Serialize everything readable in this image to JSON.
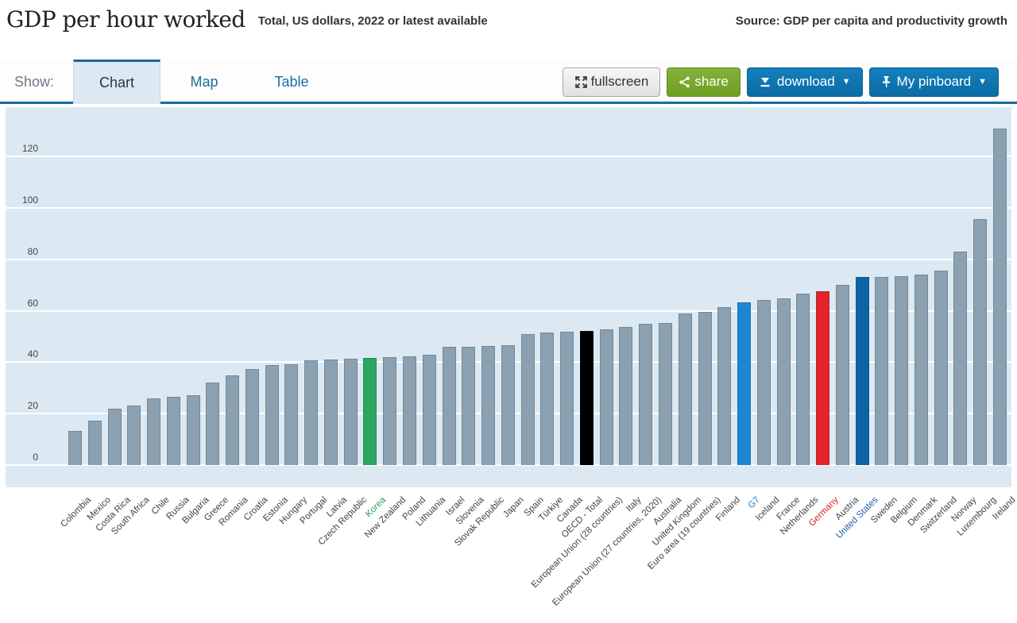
{
  "header": {
    "title": "GDP per hour worked",
    "subtitle": "Total, US dollars, 2022 or latest available",
    "source": "Source: GDP per capita and productivity growth"
  },
  "toolbar": {
    "show_label": "Show:",
    "tabs": [
      {
        "label": "Chart",
        "active": true
      },
      {
        "label": "Map",
        "active": false
      },
      {
        "label": "Table",
        "active": false
      }
    ],
    "buttons": {
      "fullscreen": "fullscreen",
      "share": "share",
      "download": "download",
      "pinboard": "My pinboard"
    },
    "icons": {
      "fullscreen": "expand-arrows-icon",
      "share": "share-nodes-icon",
      "download": "download-arrow-icon",
      "pinboard": "pushpin-icon",
      "caret": "caret-down-icon"
    }
  },
  "colors": {
    "chart_background": "#dce9f2",
    "gridline": "#ffffff",
    "bar_default": "#8ba1b1",
    "accent_blue": "#1a6a9d",
    "button_blue": "#0d6ba3",
    "button_green": "#6e9e23",
    "label_text": "#3f4449"
  },
  "chart_data": {
    "type": "bar",
    "title": "GDP per hour worked",
    "subtitle": "Total, US dollars, 2022 or latest available",
    "xlabel": "",
    "ylabel": "",
    "ylim": [
      0,
      140
    ],
    "yticks": [
      0,
      20,
      40,
      60,
      80,
      100,
      120
    ],
    "grid": true,
    "legend": "none",
    "categories": [
      "Colombia",
      "Mexico",
      "Costa Rica",
      "South Africa",
      "Chile",
      "Russia",
      "Bulgaria",
      "Greece",
      "Romania",
      "Croatia",
      "Estonia",
      "Hungary",
      "Portugal",
      "Latvia",
      "Czech Republic",
      "Korea",
      "New Zealand",
      "Poland",
      "Lithuania",
      "Israel",
      "Slovenia",
      "Slovak Republic",
      "Japan",
      "Spain",
      "Türkiye",
      "Canada",
      "OECD - Total",
      "European Union (28 countries)",
      "Italy",
      "European Union (27 countries, 2020)",
      "Australia",
      "United Kingdom",
      "Euro area (19 countries)",
      "Finland",
      "G7",
      "Iceland",
      "France",
      "Netherlands",
      "Germany",
      "Austria",
      "United States",
      "Sweden",
      "Belgium",
      "Denmark",
      "Switzerland",
      "Norway",
      "Luxembourg",
      "Ireland"
    ],
    "values": [
      13.2,
      17.3,
      22.0,
      23.2,
      25.9,
      26.5,
      27.2,
      32.2,
      34.8,
      37.2,
      38.8,
      39.3,
      40.7,
      41.0,
      41.3,
      41.6,
      41.9,
      42.3,
      43.0,
      45.9,
      46.1,
      46.4,
      46.7,
      51.0,
      51.4,
      52.0,
      52.3,
      52.9,
      53.7,
      54.8,
      55.1,
      58.9,
      59.6,
      61.4,
      63.4,
      64.3,
      64.7,
      66.8,
      67.6,
      70.1,
      73.0,
      73.1,
      73.5,
      74.2,
      75.5,
      83.1,
      95.8,
      131.0
    ],
    "bar_color_default": "#8ba1b1",
    "highlight_colors": {
      "Korea": "#2ba55f",
      "OECD - Total": "#000000",
      "G7": "#1e86d1",
      "Germany": "#e2242a",
      "United States": "#0e63a4"
    },
    "highlight_label_colors": {
      "Korea": "#2b9e5c",
      "G7": "#1e86d1",
      "Germany": "#d82427",
      "United States": "#1b62a6"
    }
  }
}
